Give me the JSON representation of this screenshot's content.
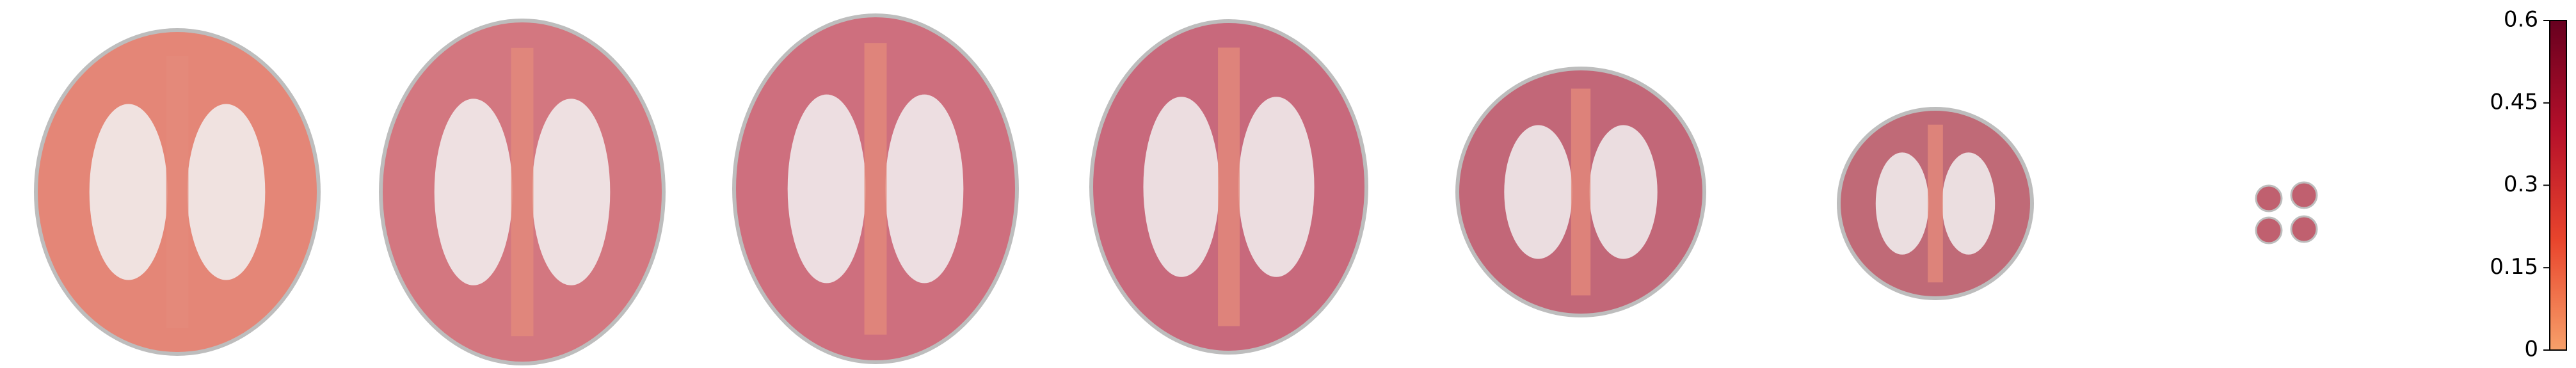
{
  "chart_data": {
    "type": "brain-slices",
    "colorbar": {
      "ylim": [
        0,
        0.6
      ],
      "yticks": [
        0,
        0.15,
        0.3,
        0.45,
        0.6
      ],
      "colors": [
        "#f7a06a",
        "#e8452c",
        "#b5102a",
        "#67001f"
      ]
    }
  }
}
